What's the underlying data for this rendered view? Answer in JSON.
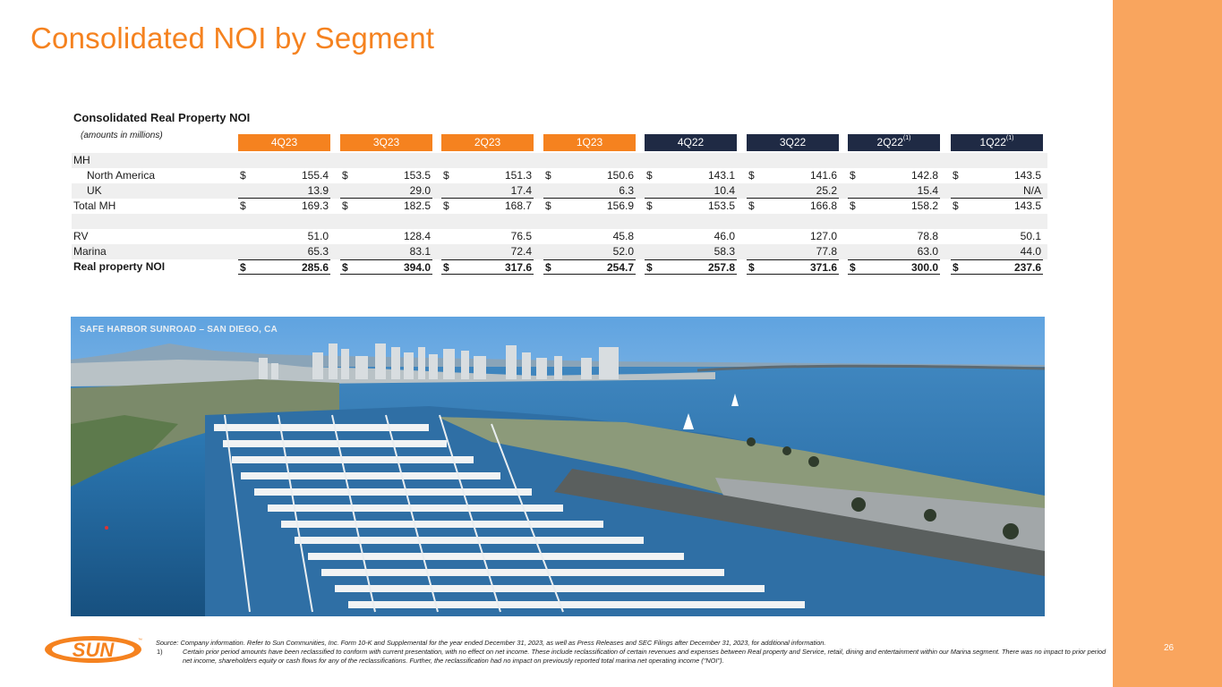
{
  "slide": {
    "title": "Consolidated NOI by Segment",
    "page_number": "26",
    "accent_color": "#f5821f",
    "band_color": "#f9a55e",
    "header_dark_color": "#1f2a44"
  },
  "table": {
    "title": "Consolidated Real Property NOI",
    "subtitle": "(amounts in millions)",
    "columns": [
      {
        "label": "4Q23",
        "note": "",
        "style": "orange"
      },
      {
        "label": "3Q23",
        "note": "",
        "style": "orange"
      },
      {
        "label": "2Q23",
        "note": "",
        "style": "orange"
      },
      {
        "label": "1Q23",
        "note": "",
        "style": "orange"
      },
      {
        "label": "4Q22",
        "note": "",
        "style": "navy"
      },
      {
        "label": "3Q22",
        "note": "",
        "style": "navy"
      },
      {
        "label": "2Q22",
        "note": "(1)",
        "style": "navy"
      },
      {
        "label": "1Q22",
        "note": "(1)",
        "style": "navy"
      }
    ],
    "rows": [
      {
        "label": "MH",
        "indent": false,
        "bold": false,
        "shaded": true,
        "kind": "section",
        "dollar": false,
        "values": []
      },
      {
        "label": "North America",
        "indent": true,
        "bold": false,
        "shaded": false,
        "kind": "data",
        "dollar": true,
        "values": [
          "155.4",
          "153.5",
          "151.3",
          "150.6",
          "143.1",
          "141.6",
          "142.8",
          "143.5"
        ]
      },
      {
        "label": "UK",
        "indent": true,
        "bold": false,
        "shaded": true,
        "kind": "rule",
        "dollar": false,
        "values": [
          "13.9",
          "29.0",
          "17.4",
          "6.3",
          "10.4",
          "25.2",
          "15.4",
          "N/A"
        ]
      },
      {
        "label": "Total MH",
        "indent": false,
        "bold": false,
        "shaded": false,
        "kind": "data",
        "dollar": true,
        "values": [
          "169.3",
          "182.5",
          "168.7",
          "156.9",
          "153.5",
          "166.8",
          "158.2",
          "143.5"
        ]
      },
      {
        "label": "",
        "indent": false,
        "bold": false,
        "shaded": true,
        "kind": "spacer",
        "dollar": false,
        "values": []
      },
      {
        "label": "RV",
        "indent": false,
        "bold": false,
        "shaded": false,
        "kind": "data",
        "dollar": false,
        "values": [
          "51.0",
          "128.4",
          "76.5",
          "45.8",
          "46.0",
          "127.0",
          "78.8",
          "50.1"
        ]
      },
      {
        "label": "Marina",
        "indent": false,
        "bold": false,
        "shaded": true,
        "kind": "data",
        "dollar": false,
        "values": [
          "65.3",
          "83.1",
          "72.4",
          "52.0",
          "58.3",
          "77.8",
          "63.0",
          "44.0"
        ]
      },
      {
        "label": "Real property NOI",
        "indent": false,
        "bold": true,
        "shaded": false,
        "kind": "total",
        "dollar": true,
        "values": [
          "285.6",
          "394.0",
          "317.6",
          "254.7",
          "257.8",
          "371.6",
          "300.0",
          "237.6"
        ]
      }
    ],
    "currency_symbol": "$"
  },
  "photo": {
    "caption": "SAFE HARBOR SUNROAD – SAN DIEGO, CA"
  },
  "footer": {
    "source": "Source: Company information.  Refer to Sun Communities, Inc. Form 10-K and Supplemental for the year ended December 31, 2023, as well as Press Releases and SEC Filings after December 31, 2023, for additional information.",
    "note_number": "1)",
    "note_text": "Certain prior period amounts have been reclassified to conform with current presentation, with no effect on net income. These include reclassification of certain revenues and expenses between Real property and Service, retail, dining and entertainment within our Marina segment. There was no impact to prior period net income, shareholders equity or cash flows for any of the reclassifications. Further, the reclassification had no impact on previously reported total marina net operating income (\"NOI\")."
  },
  "logo": {
    "text": "SUN",
    "trademark": "™",
    "icon": "sun-logo"
  }
}
